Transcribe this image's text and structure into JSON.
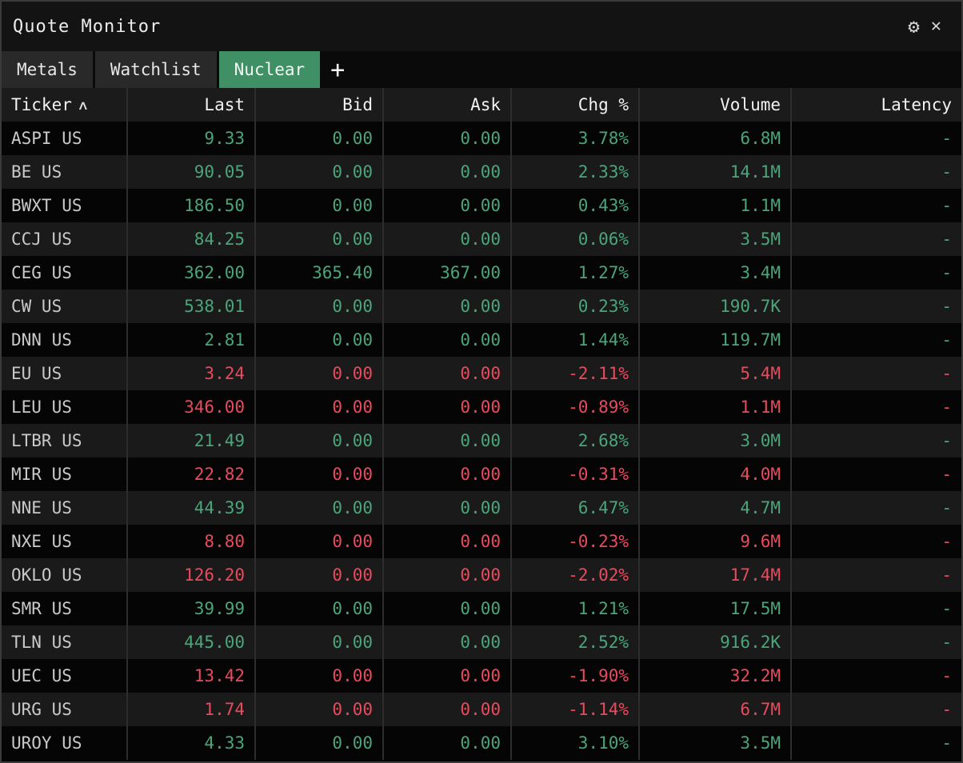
{
  "window": {
    "title": "Quote Monitor"
  },
  "titlebar_icons": {
    "settings": "⚙",
    "close": "✕"
  },
  "tabs": {
    "items": [
      {
        "label": "Metals",
        "active": false
      },
      {
        "label": "Watchlist",
        "active": false
      },
      {
        "label": "Nuclear",
        "active": true
      }
    ],
    "add_label": "+"
  },
  "colors": {
    "up": "#4ba57b",
    "down": "#e84b5d",
    "tab_active_bg": "#3f9064"
  },
  "table": {
    "sort_indicator": "∧",
    "columns": [
      {
        "label": "Ticker",
        "align": "left"
      },
      {
        "label": "Last",
        "align": "right"
      },
      {
        "label": "Bid",
        "align": "right"
      },
      {
        "label": "Ask",
        "align": "right"
      },
      {
        "label": "Chg %",
        "align": "right"
      },
      {
        "label": "Volume",
        "align": "right"
      },
      {
        "label": "Latency",
        "align": "right"
      }
    ],
    "rows": [
      {
        "ticker": "ASPI US",
        "last": "9.33",
        "bid": "0.00",
        "ask": "0.00",
        "chg": "3.78%",
        "volume": "6.8M",
        "latency": "-",
        "direction": "up"
      },
      {
        "ticker": "BE US",
        "last": "90.05",
        "bid": "0.00",
        "ask": "0.00",
        "chg": "2.33%",
        "volume": "14.1M",
        "latency": "-",
        "direction": "up"
      },
      {
        "ticker": "BWXT US",
        "last": "186.50",
        "bid": "0.00",
        "ask": "0.00",
        "chg": "0.43%",
        "volume": "1.1M",
        "latency": "-",
        "direction": "up"
      },
      {
        "ticker": "CCJ US",
        "last": "84.25",
        "bid": "0.00",
        "ask": "0.00",
        "chg": "0.06%",
        "volume": "3.5M",
        "latency": "-",
        "direction": "up"
      },
      {
        "ticker": "CEG US",
        "last": "362.00",
        "bid": "365.40",
        "ask": "367.00",
        "chg": "1.27%",
        "volume": "3.4M",
        "latency": "-",
        "direction": "up"
      },
      {
        "ticker": "CW US",
        "last": "538.01",
        "bid": "0.00",
        "ask": "0.00",
        "chg": "0.23%",
        "volume": "190.7K",
        "latency": "-",
        "direction": "up"
      },
      {
        "ticker": "DNN US",
        "last": "2.81",
        "bid": "0.00",
        "ask": "0.00",
        "chg": "1.44%",
        "volume": "119.7M",
        "latency": "-",
        "direction": "up"
      },
      {
        "ticker": "EU US",
        "last": "3.24",
        "bid": "0.00",
        "ask": "0.00",
        "chg": "-2.11%",
        "volume": "5.4M",
        "latency": "-",
        "direction": "down"
      },
      {
        "ticker": "LEU US",
        "last": "346.00",
        "bid": "0.00",
        "ask": "0.00",
        "chg": "-0.89%",
        "volume": "1.1M",
        "latency": "-",
        "direction": "down"
      },
      {
        "ticker": "LTBR US",
        "last": "21.49",
        "bid": "0.00",
        "ask": "0.00",
        "chg": "2.68%",
        "volume": "3.0M",
        "latency": "-",
        "direction": "up"
      },
      {
        "ticker": "MIR US",
        "last": "22.82",
        "bid": "0.00",
        "ask": "0.00",
        "chg": "-0.31%",
        "volume": "4.0M",
        "latency": "-",
        "direction": "down"
      },
      {
        "ticker": "NNE US",
        "last": "44.39",
        "bid": "0.00",
        "ask": "0.00",
        "chg": "6.47%",
        "volume": "4.7M",
        "latency": "-",
        "direction": "up"
      },
      {
        "ticker": "NXE US",
        "last": "8.80",
        "bid": "0.00",
        "ask": "0.00",
        "chg": "-0.23%",
        "volume": "9.6M",
        "latency": "-",
        "direction": "down"
      },
      {
        "ticker": "OKLO US",
        "last": "126.20",
        "bid": "0.00",
        "ask": "0.00",
        "chg": "-2.02%",
        "volume": "17.4M",
        "latency": "-",
        "direction": "down"
      },
      {
        "ticker": "SMR US",
        "last": "39.99",
        "bid": "0.00",
        "ask": "0.00",
        "chg": "1.21%",
        "volume": "17.5M",
        "latency": "-",
        "direction": "up"
      },
      {
        "ticker": "TLN US",
        "last": "445.00",
        "bid": "0.00",
        "ask": "0.00",
        "chg": "2.52%",
        "volume": "916.2K",
        "latency": "-",
        "direction": "up"
      },
      {
        "ticker": "UEC US",
        "last": "13.42",
        "bid": "0.00",
        "ask": "0.00",
        "chg": "-1.90%",
        "volume": "32.2M",
        "latency": "-",
        "direction": "down"
      },
      {
        "ticker": "URG US",
        "last": "1.74",
        "bid": "0.00",
        "ask": "0.00",
        "chg": "-1.14%",
        "volume": "6.7M",
        "latency": "-",
        "direction": "down"
      },
      {
        "ticker": "UROY US",
        "last": "4.33",
        "bid": "0.00",
        "ask": "0.00",
        "chg": "3.10%",
        "volume": "3.5M",
        "latency": "-",
        "direction": "up"
      }
    ]
  }
}
